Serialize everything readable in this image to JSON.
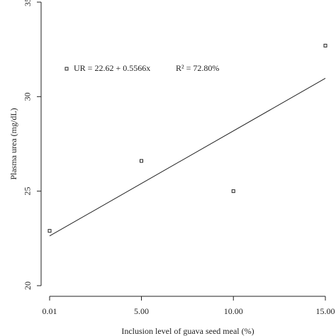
{
  "chart_data": {
    "type": "scatter",
    "x_label": "Inclusion level of guava seed meal (%)",
    "y_label": "Plasma urea (mg/dL)",
    "annotations": [
      "UR = 22.62 + 0.5566x",
      "R² = 72.80%"
    ],
    "x": [
      0.01,
      5,
      10,
      15
    ],
    "values": [
      22.9,
      26.6,
      25.0,
      32.7
    ],
    "color": "#222222",
    "fit": {
      "x": [
        0.01,
        15
      ],
      "values": [
        22.63,
        30.97
      ]
    },
    "xlim": [
      0.01,
      15
    ],
    "ylim": [
      20,
      35
    ],
    "xticks": [
      {
        "value": 0.01,
        "label": "0.01"
      },
      {
        "value": 5,
        "label": "5.00"
      },
      {
        "value": 10,
        "label": "10.00"
      },
      {
        "value": 15,
        "label": "15.00"
      }
    ],
    "yticks": [
      20,
      25,
      30,
      35
    ]
  }
}
